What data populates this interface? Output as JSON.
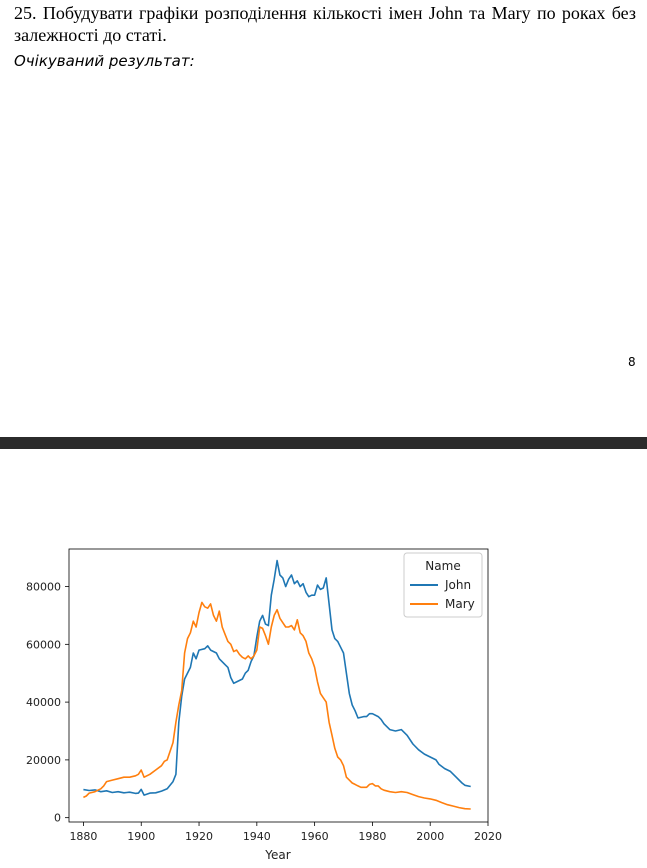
{
  "document": {
    "task_text": "25. Побудувати графіки розподілення кількості імен John та Mary по роках без залежності до статі.",
    "expected_label": "Очікуваний результат:",
    "page_number": "8"
  },
  "chart_data": {
    "type": "line",
    "title": "",
    "xlabel": "Year",
    "ylabel": "",
    "xlim": [
      1875,
      2020
    ],
    "ylim": [
      -1500,
      93000
    ],
    "xticks": [
      1880,
      1900,
      1920,
      1940,
      1960,
      1980,
      2000,
      2020
    ],
    "yticks": [
      0,
      20000,
      40000,
      60000,
      80000
    ],
    "legend_title": "Name",
    "legend_position": "top-right",
    "grid": false,
    "series": [
      {
        "name": "John",
        "color": "#1f77b4",
        "points": [
          [
            1880,
            9700
          ],
          [
            1882,
            9400
          ],
          [
            1884,
            9600
          ],
          [
            1886,
            9000
          ],
          [
            1888,
            9300
          ],
          [
            1890,
            8700
          ],
          [
            1892,
            9000
          ],
          [
            1894,
            8600
          ],
          [
            1896,
            8800
          ],
          [
            1898,
            8400
          ],
          [
            1899,
            8500
          ],
          [
            1900,
            9800
          ],
          [
            1901,
            7800
          ],
          [
            1903,
            8500
          ],
          [
            1905,
            8600
          ],
          [
            1907,
            9200
          ],
          [
            1909,
            10000
          ],
          [
            1911,
            12500
          ],
          [
            1912,
            15000
          ],
          [
            1913,
            33000
          ],
          [
            1914,
            42000
          ],
          [
            1915,
            48000
          ],
          [
            1917,
            52000
          ],
          [
            1918,
            57000
          ],
          [
            1919,
            55000
          ],
          [
            1920,
            58000
          ],
          [
            1922,
            58500
          ],
          [
            1923,
            59500
          ],
          [
            1924,
            58000
          ],
          [
            1926,
            57000
          ],
          [
            1927,
            55000
          ],
          [
            1929,
            53000
          ],
          [
            1930,
            52000
          ],
          [
            1931,
            48500
          ],
          [
            1932,
            46500
          ],
          [
            1933,
            47000
          ],
          [
            1935,
            48000
          ],
          [
            1936,
            50000
          ],
          [
            1937,
            51000
          ],
          [
            1938,
            54000
          ],
          [
            1939,
            56000
          ],
          [
            1940,
            62500
          ],
          [
            1941,
            68000
          ],
          [
            1942,
            70000
          ],
          [
            1943,
            67000
          ],
          [
            1944,
            66500
          ],
          [
            1945,
            77000
          ],
          [
            1946,
            82500
          ],
          [
            1947,
            89000
          ],
          [
            1948,
            84000
          ],
          [
            1949,
            83000
          ],
          [
            1950,
            80000
          ],
          [
            1951,
            82500
          ],
          [
            1952,
            84000
          ],
          [
            1953,
            81000
          ],
          [
            1954,
            82000
          ],
          [
            1955,
            80000
          ],
          [
            1956,
            81000
          ],
          [
            1957,
            78000
          ],
          [
            1958,
            76500
          ],
          [
            1959,
            77000
          ],
          [
            1960,
            77000
          ],
          [
            1961,
            80500
          ],
          [
            1962,
            79000
          ],
          [
            1963,
            79500
          ],
          [
            1964,
            83000
          ],
          [
            1965,
            74000
          ],
          [
            1966,
            65000
          ],
          [
            1967,
            62000
          ],
          [
            1968,
            61000
          ],
          [
            1969,
            59000
          ],
          [
            1970,
            57000
          ],
          [
            1971,
            50000
          ],
          [
            1972,
            43000
          ],
          [
            1973,
            39000
          ],
          [
            1974,
            37000
          ],
          [
            1975,
            34500
          ],
          [
            1977,
            35000
          ],
          [
            1978,
            35000
          ],
          [
            1979,
            36000
          ],
          [
            1980,
            36000
          ],
          [
            1982,
            35000
          ],
          [
            1983,
            34000
          ],
          [
            1984,
            32500
          ],
          [
            1986,
            30500
          ],
          [
            1988,
            30000
          ],
          [
            1990,
            30500
          ],
          [
            1992,
            28500
          ],
          [
            1994,
            25500
          ],
          [
            1996,
            23500
          ],
          [
            1998,
            22000
          ],
          [
            2000,
            21000
          ],
          [
            2002,
            20000
          ],
          [
            2003,
            18500
          ],
          [
            2005,
            17000
          ],
          [
            2007,
            16000
          ],
          [
            2009,
            14000
          ],
          [
            2011,
            12000
          ],
          [
            2012,
            11200
          ],
          [
            2014,
            10800
          ]
        ]
      },
      {
        "name": "Mary",
        "color": "#ff7f0e",
        "points": [
          [
            1880,
            7000
          ],
          [
            1881,
            7500
          ],
          [
            1882,
            8500
          ],
          [
            1884,
            9000
          ],
          [
            1885,
            9500
          ],
          [
            1886,
            10000
          ],
          [
            1887,
            11000
          ],
          [
            1888,
            12500
          ],
          [
            1890,
            13000
          ],
          [
            1892,
            13500
          ],
          [
            1894,
            14000
          ],
          [
            1896,
            14000
          ],
          [
            1898,
            14500
          ],
          [
            1899,
            15000
          ],
          [
            1900,
            16500
          ],
          [
            1901,
            14000
          ],
          [
            1903,
            15000
          ],
          [
            1905,
            16500
          ],
          [
            1907,
            18000
          ],
          [
            1908,
            19500
          ],
          [
            1909,
            20000
          ],
          [
            1910,
            23000
          ],
          [
            1911,
            26000
          ],
          [
            1912,
            33000
          ],
          [
            1913,
            39000
          ],
          [
            1914,
            44000
          ],
          [
            1915,
            57000
          ],
          [
            1916,
            62000
          ],
          [
            1917,
            64000
          ],
          [
            1918,
            68000
          ],
          [
            1919,
            66000
          ],
          [
            1920,
            71000
          ],
          [
            1921,
            74500
          ],
          [
            1922,
            73000
          ],
          [
            1923,
            72500
          ],
          [
            1924,
            74000
          ],
          [
            1925,
            70000
          ],
          [
            1926,
            68000
          ],
          [
            1927,
            71500
          ],
          [
            1928,
            66000
          ],
          [
            1929,
            63500
          ],
          [
            1930,
            61000
          ],
          [
            1931,
            60000
          ],
          [
            1932,
            57500
          ],
          [
            1933,
            58000
          ],
          [
            1934,
            56500
          ],
          [
            1935,
            55500
          ],
          [
            1936,
            55000
          ],
          [
            1937,
            56000
          ],
          [
            1938,
            55000
          ],
          [
            1939,
            56000
          ],
          [
            1940,
            58000
          ],
          [
            1941,
            66000
          ],
          [
            1942,
            65500
          ],
          [
            1943,
            63000
          ],
          [
            1944,
            60000
          ],
          [
            1945,
            66000
          ],
          [
            1946,
            70000
          ],
          [
            1947,
            72000
          ],
          [
            1948,
            69000
          ],
          [
            1949,
            67500
          ],
          [
            1950,
            66000
          ],
          [
            1951,
            66000
          ],
          [
            1952,
            66500
          ],
          [
            1953,
            65000
          ],
          [
            1954,
            68500
          ],
          [
            1955,
            64000
          ],
          [
            1956,
            63000
          ],
          [
            1957,
            61000
          ],
          [
            1958,
            57000
          ],
          [
            1959,
            55000
          ],
          [
            1960,
            52000
          ],
          [
            1961,
            47000
          ],
          [
            1962,
            43000
          ],
          [
            1963,
            41500
          ],
          [
            1964,
            40000
          ],
          [
            1965,
            33000
          ],
          [
            1966,
            28500
          ],
          [
            1967,
            24000
          ],
          [
            1968,
            21000
          ],
          [
            1969,
            20000
          ],
          [
            1970,
            18000
          ],
          [
            1971,
            14000
          ],
          [
            1972,
            13000
          ],
          [
            1973,
            12000
          ],
          [
            1974,
            11500
          ],
          [
            1975,
            11000
          ],
          [
            1976,
            10500
          ],
          [
            1978,
            10500
          ],
          [
            1979,
            11500
          ],
          [
            1980,
            11800
          ],
          [
            1981,
            11000
          ],
          [
            1982,
            11000
          ],
          [
            1983,
            10000
          ],
          [
            1984,
            9500
          ],
          [
            1986,
            9000
          ],
          [
            1988,
            8700
          ],
          [
            1990,
            9000
          ],
          [
            1992,
            8700
          ],
          [
            1994,
            8000
          ],
          [
            1996,
            7300
          ],
          [
            1998,
            6800
          ],
          [
            2000,
            6500
          ],
          [
            2002,
            6000
          ],
          [
            2004,
            5200
          ],
          [
            2006,
            4500
          ],
          [
            2008,
            4000
          ],
          [
            2010,
            3500
          ],
          [
            2012,
            3100
          ],
          [
            2014,
            3000
          ]
        ]
      }
    ]
  }
}
